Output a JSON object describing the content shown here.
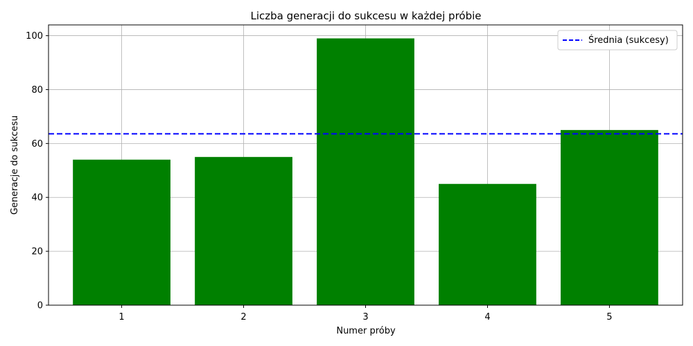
{
  "chart_data": {
    "type": "bar",
    "title": "Liczba generacji do sukcesu w każdej próbie",
    "xlabel": "Numer próby",
    "ylabel": "Generacje do sukcesu",
    "categories": [
      "1",
      "2",
      "3",
      "4",
      "5"
    ],
    "values": [
      54,
      55,
      99,
      45,
      65
    ],
    "ylim": [
      0,
      104
    ],
    "yticks": [
      0,
      20,
      40,
      60,
      80,
      100
    ],
    "grid": true,
    "bar_color": "#008000",
    "reference_line": {
      "value": 63.6,
      "label": "Średnia (sukcesy)",
      "style": "dashed",
      "color": "#0000ff"
    },
    "legend": {
      "position": "top-right",
      "entries": [
        "Średnia (sukcesy)"
      ]
    }
  }
}
